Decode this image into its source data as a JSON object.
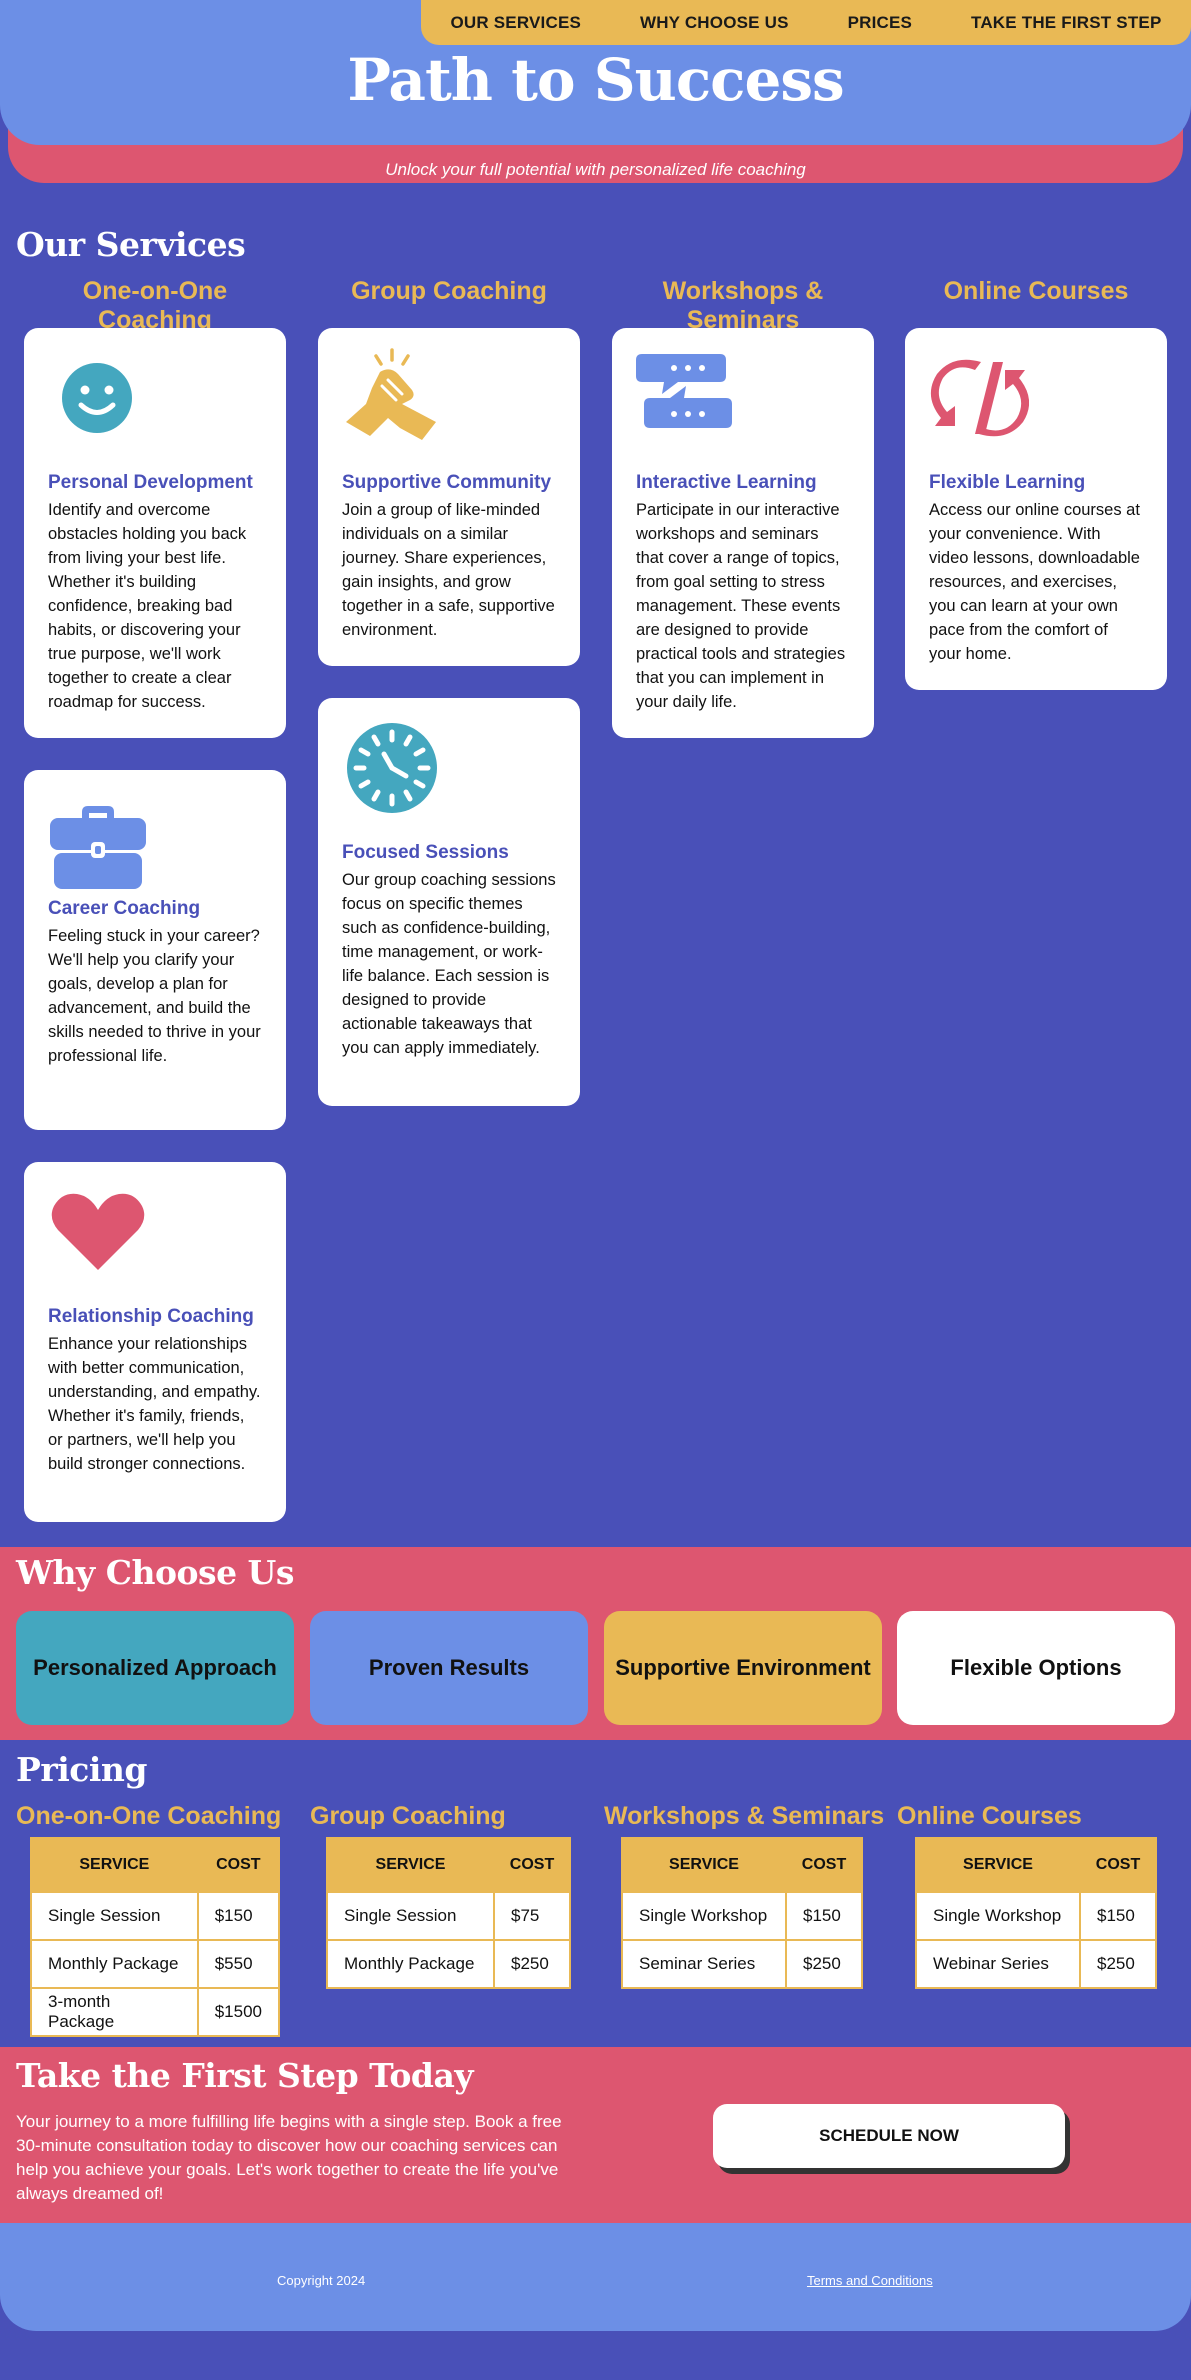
{
  "nav": {
    "items": [
      "OUR SERVICES",
      "WHY CHOOSE US",
      "PRICES",
      "TAKE THE FIRST STEP"
    ]
  },
  "hero": {
    "title": "Path to Success",
    "subtitle": "Unlock your full potential with personalized life coaching"
  },
  "services": {
    "title": "Our Services",
    "columns": [
      {
        "heading": "One-on-One Coaching",
        "cards": [
          {
            "icon": "smiley-face-icon",
            "title": "Personal Development",
            "text": "Identify and overcome obstacles holding you back from living your best life. Whether it's building confidence, breaking bad habits, or discovering your true purpose, we'll work together to create a clear roadmap for success."
          },
          {
            "icon": "briefcase-icon",
            "title": "Career Coaching",
            "text": "Feeling stuck in your career? We'll help you clarify your goals, develop a plan for advancement, and build the skills needed to thrive in your professional life."
          },
          {
            "icon": "heart-icon",
            "title": "Relationship Coaching",
            "text": "Enhance your relationships with better communication, understanding, and empathy. Whether it's family, friends, or partners, we'll help you build stronger connections."
          }
        ]
      },
      {
        "heading": "Group Coaching",
        "cards": [
          {
            "icon": "handshake-icon",
            "title": "Supportive Community",
            "text": "Join a group of like-minded individuals on a similar journey. Share experiences, gain insights, and grow together in a safe, supportive environment."
          },
          {
            "icon": "clock-icon",
            "title": "Focused Sessions",
            "text": "Our group coaching sessions focus on specific themes such as confidence-building, time management, or work-life balance. Each session is designed to provide actionable takeaways that you can apply immediately."
          }
        ]
      },
      {
        "heading": "Workshops & Seminars",
        "cards": [
          {
            "icon": "chat-bubbles-icon",
            "title": "Interactive Learning",
            "text": "Participate in our interactive workshops and seminars that cover a range of topics, from goal setting to stress management. These events are designed to provide practical tools and strategies that you can implement in your daily life."
          }
        ]
      },
      {
        "heading": "Online Courses",
        "cards": [
          {
            "icon": "sync-arrows-icon",
            "title": "Flexible Learning",
            "text": "Access our online courses at your convenience. With video lessons, downloadable resources, and exercises, you can learn at your own pace from the comfort of your home."
          }
        ]
      }
    ]
  },
  "why": {
    "title": "Why Choose Us",
    "items": [
      "Personalized Approach",
      "Proven Results",
      "Supportive Environment",
      "Flexible Options"
    ],
    "colors": [
      "#44a7bf",
      "#6c8fe6",
      "#e9b955",
      "#ffffff"
    ]
  },
  "pricing": {
    "title": "Pricing",
    "header": {
      "service": "SERVICE",
      "cost": "COST"
    },
    "groups": [
      {
        "heading": "One-on-One Coaching",
        "rows": [
          [
            "Single Session",
            "$150"
          ],
          [
            "Monthly Package",
            "$550"
          ],
          [
            "3-month Package",
            "$1500"
          ]
        ]
      },
      {
        "heading": "Group Coaching",
        "rows": [
          [
            "Single Session",
            "$75"
          ],
          [
            "Monthly Package",
            "$250"
          ]
        ]
      },
      {
        "heading": "Workshops & Seminars",
        "rows": [
          [
            "Single Workshop",
            "$150"
          ],
          [
            "Seminar Series",
            "$250"
          ]
        ]
      },
      {
        "heading": "Online Courses",
        "rows": [
          [
            "Single Workshop",
            "$150"
          ],
          [
            "Webinar Series",
            "$250"
          ]
        ]
      }
    ]
  },
  "cta": {
    "title": "Take the First Step Today",
    "text": "Your journey to a more fulfilling life begins with a single step. Book a free 30-minute consultation today to discover how our coaching services can help you achieve your goals. Let's work together to create the life you've always dreamed of!",
    "button": "SCHEDULE NOW"
  },
  "footer": {
    "copyright": "Copyright 2024",
    "terms": "Terms and Conditions"
  },
  "colors": {
    "background": "#4950b8",
    "accent_blue": "#6c8fe6",
    "accent_pink": "#dd5670",
    "accent_yellow": "#e9b955",
    "accent_teal": "#44a7bf"
  }
}
